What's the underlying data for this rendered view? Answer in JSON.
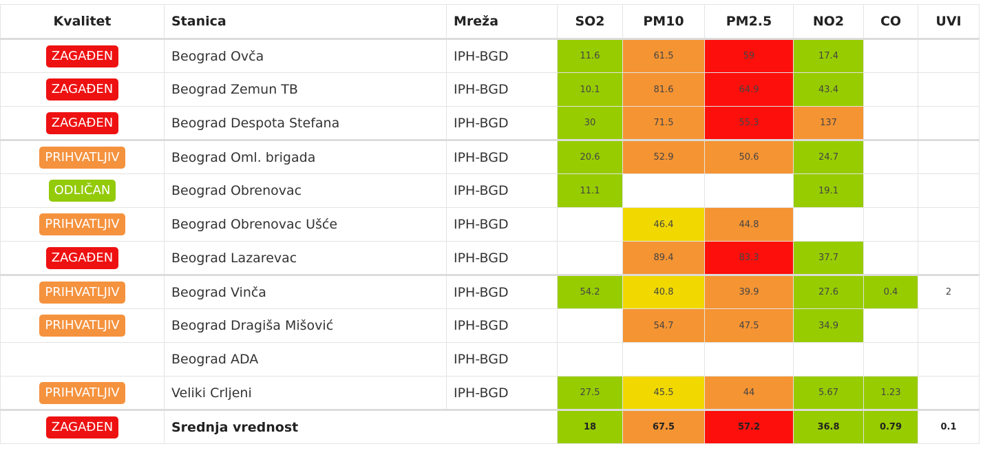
{
  "colors": {
    "green": "#97cc00",
    "yellow": "#f1d900",
    "orange": "#f59433",
    "red": "#fd0f0c",
    "badge_red": "#ee1111",
    "badge_orange": "#f5923e",
    "badge_green": "#93ca0a"
  },
  "headers": [
    "Kvalitet",
    "Stanica",
    "Mreža",
    "SO2",
    "PM10",
    "PM2.5",
    "NO2",
    "CO",
    "UVI"
  ],
  "rows": [
    {
      "quality": "ZAGAĐEN",
      "q_color": "red",
      "station": "Beograd Ovča",
      "network": "IPH-BGD",
      "values": [
        {
          "v": "11.6",
          "c": "green"
        },
        {
          "v": "61.5",
          "c": "orange"
        },
        {
          "v": "59",
          "c": "red"
        },
        {
          "v": "17.4",
          "c": "green"
        },
        {
          "v": "",
          "c": ""
        },
        {
          "v": "",
          "c": ""
        }
      ]
    },
    {
      "quality": "ZAGAĐEN",
      "q_color": "red",
      "station": "Beograd Zemun TB",
      "network": "IPH-BGD",
      "values": [
        {
          "v": "10.1",
          "c": "green"
        },
        {
          "v": "81.6",
          "c": "orange"
        },
        {
          "v": "64.9",
          "c": "red"
        },
        {
          "v": "43.4",
          "c": "green"
        },
        {
          "v": "",
          "c": ""
        },
        {
          "v": "",
          "c": ""
        }
      ]
    },
    {
      "quality": "ZAGAĐEN",
      "q_color": "red",
      "station": "Beograd Despota Stefana",
      "network": "IPH-BGD",
      "values": [
        {
          "v": "30",
          "c": "green"
        },
        {
          "v": "71.5",
          "c": "orange"
        },
        {
          "v": "55.3",
          "c": "red"
        },
        {
          "v": "137",
          "c": "orange"
        },
        {
          "v": "",
          "c": ""
        },
        {
          "v": "",
          "c": ""
        }
      ]
    },
    {
      "quality": "PRIHVATLJIV",
      "q_color": "orange",
      "station": "Beograd Oml. brigada",
      "network": "IPH-BGD",
      "sep": true,
      "values": [
        {
          "v": "20.6",
          "c": "green"
        },
        {
          "v": "52.9",
          "c": "orange"
        },
        {
          "v": "50.6",
          "c": "orange"
        },
        {
          "v": "24.7",
          "c": "green"
        },
        {
          "v": "",
          "c": ""
        },
        {
          "v": "",
          "c": ""
        }
      ]
    },
    {
      "quality": "ODLIČAN",
      "q_color": "green",
      "station": "Beograd Obrenovac",
      "network": "IPH-BGD",
      "values": [
        {
          "v": "11.1",
          "c": "green"
        },
        {
          "v": "",
          "c": ""
        },
        {
          "v": "",
          "c": ""
        },
        {
          "v": "19.1",
          "c": "green"
        },
        {
          "v": "",
          "c": ""
        },
        {
          "v": "",
          "c": ""
        }
      ]
    },
    {
      "quality": "PRIHVATLJIV",
      "q_color": "orange",
      "station": "Beograd Obrenovac Ušće",
      "network": "IPH-BGD",
      "values": [
        {
          "v": "",
          "c": ""
        },
        {
          "v": "46.4",
          "c": "yellow"
        },
        {
          "v": "44.8",
          "c": "orange"
        },
        {
          "v": "",
          "c": ""
        },
        {
          "v": "",
          "c": ""
        },
        {
          "v": "",
          "c": ""
        }
      ]
    },
    {
      "quality": "ZAGAĐEN",
      "q_color": "red",
      "station": "Beograd Lazarevac",
      "network": "IPH-BGD",
      "values": [
        {
          "v": "",
          "c": ""
        },
        {
          "v": "89.4",
          "c": "orange"
        },
        {
          "v": "83.3",
          "c": "red"
        },
        {
          "v": "37.7",
          "c": "green"
        },
        {
          "v": "",
          "c": ""
        },
        {
          "v": "",
          "c": ""
        }
      ]
    },
    {
      "quality": "PRIHVATLJIV",
      "q_color": "orange",
      "station": "Beograd Vinča",
      "network": "IPH-BGD",
      "sep": true,
      "values": [
        {
          "v": "54.2",
          "c": "green"
        },
        {
          "v": "40.8",
          "c": "yellow"
        },
        {
          "v": "39.9",
          "c": "orange"
        },
        {
          "v": "27.6",
          "c": "green"
        },
        {
          "v": "0.4",
          "c": "green"
        },
        {
          "v": "2",
          "c": ""
        }
      ]
    },
    {
      "quality": "PRIHVATLJIV",
      "q_color": "orange",
      "station": "Beograd Dragiša Mišović",
      "network": "IPH-BGD",
      "values": [
        {
          "v": "",
          "c": ""
        },
        {
          "v": "54.7",
          "c": "orange"
        },
        {
          "v": "47.5",
          "c": "orange"
        },
        {
          "v": "34.9",
          "c": "green"
        },
        {
          "v": "",
          "c": ""
        },
        {
          "v": "",
          "c": ""
        }
      ]
    },
    {
      "quality": "",
      "q_color": "",
      "station": "Beograd ADA",
      "network": "IPH-BGD",
      "values": [
        {
          "v": "",
          "c": ""
        },
        {
          "v": "",
          "c": ""
        },
        {
          "v": "",
          "c": ""
        },
        {
          "v": "",
          "c": ""
        },
        {
          "v": "",
          "c": ""
        },
        {
          "v": "",
          "c": ""
        }
      ]
    },
    {
      "quality": "PRIHVATLJIV",
      "q_color": "orange",
      "station": "Veliki Crljeni",
      "network": "IPH-BGD",
      "values": [
        {
          "v": "27.5",
          "c": "green"
        },
        {
          "v": "45.5",
          "c": "yellow"
        },
        {
          "v": "44",
          "c": "orange"
        },
        {
          "v": "5.67",
          "c": "green"
        },
        {
          "v": "1.23",
          "c": "green"
        },
        {
          "v": "",
          "c": ""
        }
      ]
    }
  ],
  "footer": {
    "quality": "ZAGAĐEN",
    "q_color": "red",
    "label": "Srednja vrednost",
    "values": [
      {
        "v": "18",
        "c": "green"
      },
      {
        "v": "67.5",
        "c": "orange"
      },
      {
        "v": "57.2",
        "c": "red"
      },
      {
        "v": "36.8",
        "c": "green"
      },
      {
        "v": "0.79",
        "c": "green"
      },
      {
        "v": "0.1",
        "c": ""
      }
    ]
  }
}
